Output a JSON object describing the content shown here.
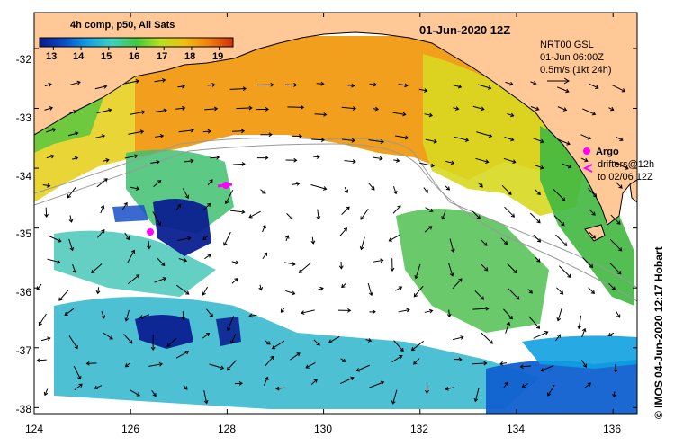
{
  "title_date": "01-Jun-2020 12Z",
  "colorbar": {
    "title": "4h comp, p50, All Sats",
    "labels": [
      "13",
      "14",
      "15",
      "16",
      "17",
      "18",
      "19"
    ],
    "min": 12.5,
    "max": 19.5,
    "colors": [
      "#0a1a8c",
      "#0a4cc8",
      "#10a0e0",
      "#40d0c0",
      "#40c840",
      "#b8e020",
      "#f0c010",
      "#f08010",
      "#d03008"
    ]
  },
  "map": {
    "lon_range": [
      124,
      136.5
    ],
    "lat_range": [
      -38.1,
      -31.4
    ],
    "lon_ticks": [
      "124",
      "126",
      "128",
      "130",
      "132",
      "134",
      "136"
    ],
    "lat_ticks": [
      "-32",
      "-33",
      "-34",
      "-35",
      "-36",
      "-37",
      "-38"
    ],
    "land_color": "#ffc896",
    "coast_color": "#000000",
    "contour_color": "#999999"
  },
  "altimetry": {
    "source": "NRT00 GSL",
    "time": "01-Jun 06:00Z",
    "scale": "0.5m/s (1kt 24h)"
  },
  "drifters": {
    "argo_label": "Argo",
    "line1": "drifters@12h",
    "line2": "to 02/06 12Z",
    "argo_color": "#ff00ff"
  },
  "credit": "© IMOS 04-Jun-2020 12:17 Hobart"
}
